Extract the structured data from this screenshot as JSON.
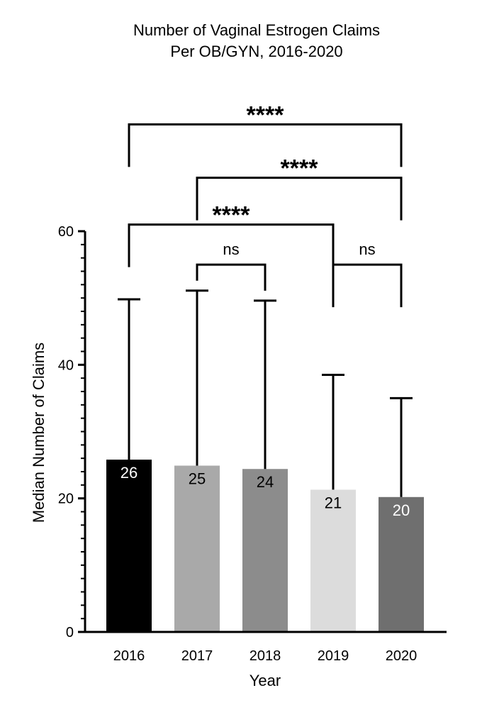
{
  "chart_data": {
    "type": "bar",
    "title_lines": [
      "Number of Vaginal Estrogen Claims",
      "Per OB/GYN, 2016-2020"
    ],
    "xlabel": "Year",
    "ylabel": "Median Number of Claims",
    "categories": [
      "2016",
      "2017",
      "2018",
      "2019",
      "2020"
    ],
    "values": [
      25.8,
      24.9,
      24.4,
      21.3,
      20.2
    ],
    "value_labels": [
      "26",
      "25",
      "24",
      "21",
      "20"
    ],
    "error_upper": [
      49.8,
      51.1,
      49.6,
      38.5,
      35.0
    ],
    "bar_colors": [
      "#000000",
      "#a9a9a9",
      "#8c8c8c",
      "#dcdcdc",
      "#6f6f6f"
    ],
    "label_colors": [
      "#ffffff",
      "#000000",
      "#000000",
      "#000000",
      "#ffffff"
    ],
    "ylim": [
      0,
      60
    ],
    "yticks": [
      0,
      20,
      40,
      60
    ],
    "grid": false,
    "significance": [
      {
        "from": 1,
        "to": 2,
        "label": "ns",
        "y": 55
      },
      {
        "from": 3,
        "to": 4,
        "label": "ns",
        "y": 55
      },
      {
        "from": 0,
        "to": 3,
        "label": "****",
        "y": 61
      },
      {
        "from": 1,
        "to": 4,
        "label": "****",
        "y": 68
      },
      {
        "from": 0,
        "to": 4,
        "label": "****",
        "y": 76
      }
    ]
  }
}
